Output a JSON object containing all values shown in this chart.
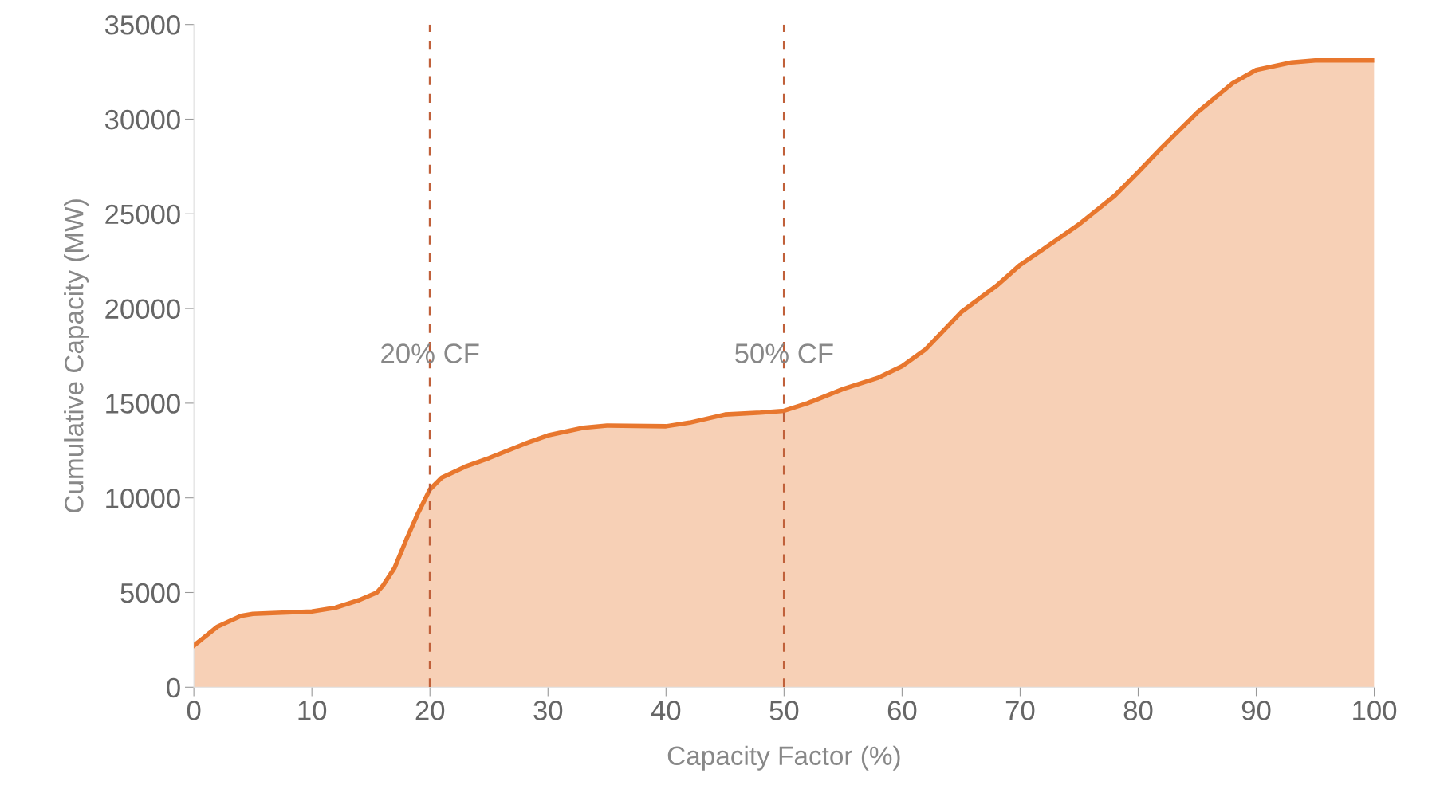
{
  "chart_data": {
    "type": "area",
    "xlabel": "Capacity Factor (%)",
    "ylabel": "Cumulative Capacity (MW)",
    "series": [
      {
        "color": "#e8772e",
        "x": [
          0,
          2,
          4,
          5,
          10,
          12,
          14,
          15.5,
          16,
          17,
          18,
          19,
          20,
          21,
          23,
          25,
          28,
          30,
          33,
          35,
          40,
          42,
          45,
          48,
          50,
          52,
          55,
          58,
          60,
          62,
          65,
          68,
          70,
          72,
          75,
          78,
          80,
          82,
          85,
          88,
          90,
          93,
          95,
          100
        ],
        "values": [
          2200,
          3200,
          3770,
          3870,
          4000,
          4200,
          4600,
          5000,
          5350,
          6300,
          7800,
          9200,
          10450,
          11070,
          11650,
          12100,
          12850,
          13300,
          13700,
          13820,
          13780,
          13970,
          14400,
          14500,
          14600,
          15000,
          15750,
          16350,
          16950,
          17850,
          19800,
          21200,
          22300,
          23150,
          24450,
          25950,
          27200,
          28500,
          30350,
          31900,
          32600,
          33000,
          33100,
          33100
        ]
      }
    ],
    "xlim": [
      0,
      100
    ],
    "xticks": [
      0,
      10,
      20,
      30,
      40,
      50,
      60,
      70,
      80,
      90,
      100
    ],
    "ylim": [
      0,
      35000
    ],
    "yticks": [
      0,
      5000,
      10000,
      15000,
      20000,
      25000,
      30000,
      35000
    ],
    "ref_lines": [
      {
        "axis": "x",
        "value": 20,
        "label": "20% CF",
        "color": "#c0603a",
        "line_style": "dashed"
      },
      {
        "axis": "x",
        "value": 50,
        "label": "50% CF",
        "color": "#c0603a",
        "line_style": "dashed"
      }
    ],
    "grid": false
  }
}
